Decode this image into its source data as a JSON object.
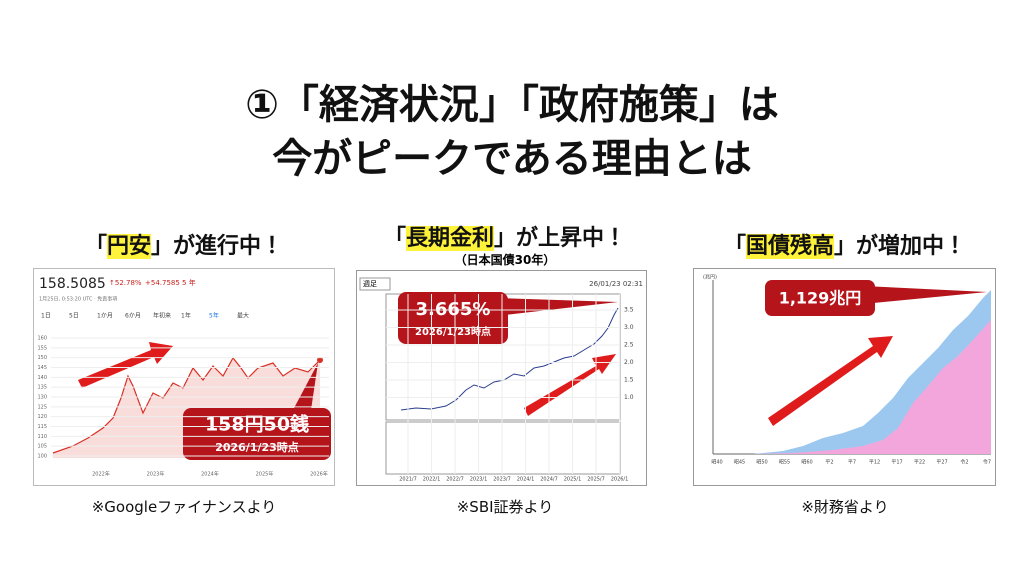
{
  "title": {
    "line1": "①「経済状況」「政府施策」は",
    "line2": "今がピークである理由とは"
  },
  "panels": [
    {
      "heading_open": "「",
      "heading_highlight": "円安",
      "heading_close": "」が進行中！",
      "source": "※Googleファイナンスより",
      "screenshot": {
        "price": "158.5085",
        "change_pct": "↑52.78%",
        "change_abs": "+54.7585 5 年",
        "timestamp": "1月25日, 0:53:20 UTC · 免責事項",
        "ranges": [
          "1日",
          "5日",
          "1か月",
          "6か月",
          "年初来",
          "1年",
          "5年",
          "最大"
        ],
        "yticks": [
          "160",
          "155",
          "150",
          "145",
          "140",
          "135",
          "130",
          "125",
          "120",
          "115",
          "110",
          "105",
          "100"
        ],
        "xticks": [
          "2022年",
          "2023年",
          "2024年",
          "2025年",
          "2026年"
        ],
        "callout": {
          "value": "158円50銭",
          "date": "2026/1/23時点"
        }
      }
    },
    {
      "heading_open": "「",
      "heading_highlight": "長期金利",
      "heading_close": "」が上昇中！",
      "subheading": "（日本国債30年）",
      "source": "※SBI証券より",
      "screenshot": {
        "period": "週足",
        "timestamp": "26/01/23 02:31",
        "yticks": [
          "3.5",
          "3.0",
          "2.5",
          "2.0",
          "1.5",
          "1.0"
        ],
        "xticks": [
          "2021/7",
          "2022/1",
          "2022/7",
          "2023/1",
          "2023/7",
          "2024/1",
          "2024/7",
          "2025/1",
          "2025/7",
          "2026/1"
        ],
        "callout": {
          "value": "3.665%",
          "date": "2026/1/23時点"
        }
      }
    },
    {
      "heading_open": "「",
      "heading_highlight": "国債残高",
      "heading_close": "」が増加中！",
      "source": "※財務省より",
      "screenshot": {
        "unit": "(兆円)",
        "xticks": [
          "昭40",
          "昭45",
          "昭50",
          "昭55",
          "昭60",
          "平2",
          "平7",
          "平12",
          "平17",
          "平22",
          "平27",
          "令2",
          "令7"
        ],
        "callout": {
          "value": "1,129兆円"
        }
      }
    }
  ]
}
